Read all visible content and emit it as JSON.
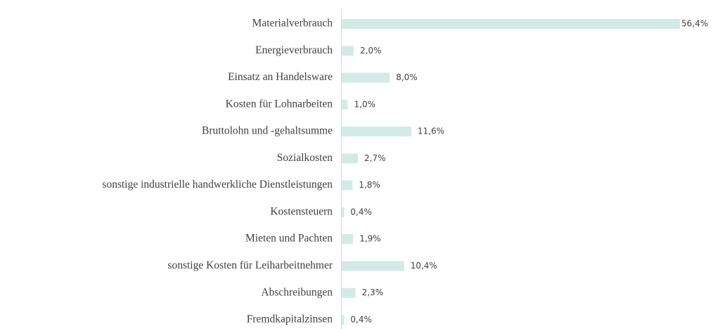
{
  "chart_data": {
    "type": "barh",
    "categories": [
      "Materialverbrauch",
      "Energieverbrauch",
      "Einsatz an Handelsware",
      "Kosten für Lohnarbeiten",
      "Bruttolohn und -gehaltsumme",
      "Sozialkosten",
      "sonstige industrielle handwerkliche Dienstleistungen",
      "Kostensteuern",
      "Mieten und Pachten",
      "sonstige Kosten für Leiharbeitnehmer",
      "Abschreibungen",
      "Fremdkapitalzinsen"
    ],
    "values": [
      56.4,
      2.0,
      8.0,
      1.0,
      11.6,
      2.7,
      1.8,
      0.4,
      1.9,
      10.4,
      2.3,
      0.4
    ],
    "value_labels": [
      "56,4%",
      "2,0%",
      "8,0%",
      "1,0%",
      "11,6%",
      "2,7%",
      "1,8%",
      "0,4%",
      "1,9%",
      "10,4%",
      "2,3%",
      "0,4%"
    ],
    "color": "#d3ebe6"
  }
}
